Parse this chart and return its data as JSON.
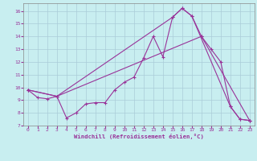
{
  "xlabel": "Windchill (Refroidissement éolien,°C)",
  "bg_color": "#c8eef0",
  "line_color": "#993399",
  "xlim": [
    -0.5,
    23.5
  ],
  "ylim": [
    7,
    16.6
  ],
  "yticks": [
    7,
    8,
    9,
    10,
    11,
    12,
    13,
    14,
    15,
    16
  ],
  "xticks": [
    0,
    1,
    2,
    3,
    4,
    5,
    6,
    7,
    8,
    9,
    10,
    11,
    12,
    13,
    14,
    15,
    16,
    17,
    18,
    19,
    20,
    21,
    22,
    23
  ],
  "line1_x": [
    0,
    1,
    2,
    3,
    4,
    5,
    6,
    7,
    8,
    9,
    10,
    11,
    12,
    13,
    14,
    15,
    16,
    17,
    18,
    19,
    20,
    21,
    22,
    23
  ],
  "line1_y": [
    9.8,
    9.2,
    9.1,
    9.3,
    7.6,
    8.0,
    8.7,
    8.8,
    8.8,
    9.8,
    10.4,
    10.8,
    12.3,
    14.0,
    12.4,
    15.5,
    16.2,
    15.6,
    14.0,
    13.0,
    12.0,
    8.5,
    7.5,
    7.4
  ],
  "line2_x": [
    0,
    3,
    15,
    16,
    17,
    21,
    22,
    23
  ],
  "line2_y": [
    9.8,
    9.3,
    15.5,
    16.2,
    15.6,
    8.5,
    7.5,
    7.4
  ],
  "line3_x": [
    0,
    3,
    18,
    23
  ],
  "line3_y": [
    9.8,
    9.3,
    14.0,
    7.4
  ]
}
